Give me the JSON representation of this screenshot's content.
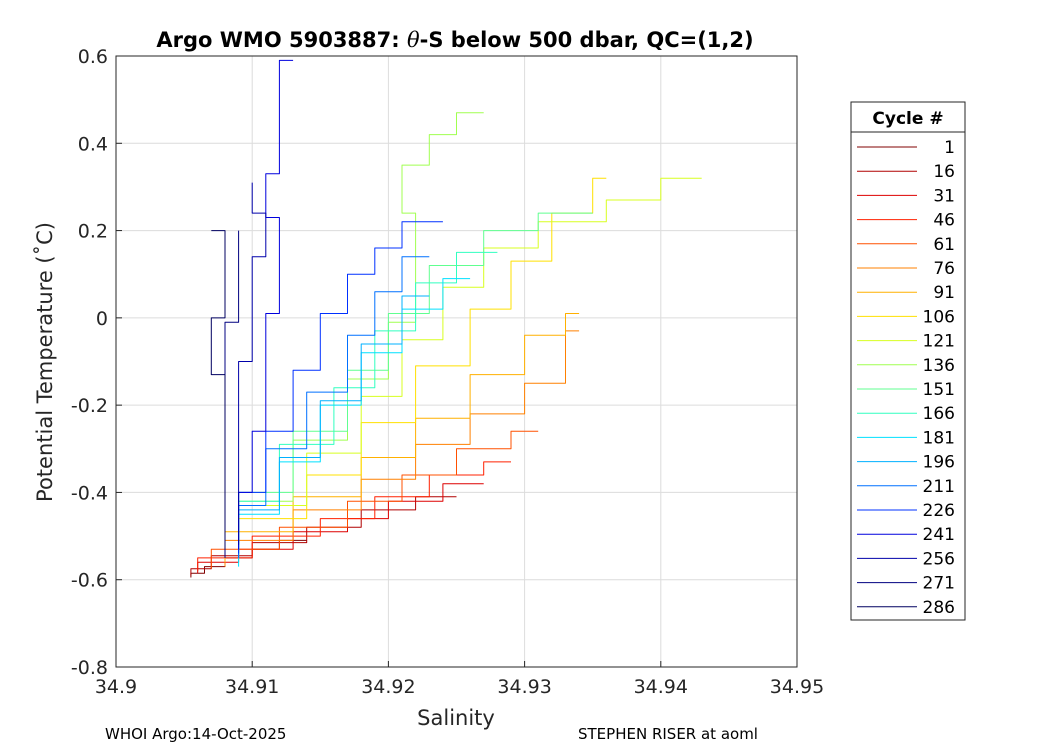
{
  "chart_data": {
    "type": "line",
    "title_parts": [
      "Argo WMO 5903887: ",
      "θ",
      "-S below 500 dbar,  QC=(1,2)"
    ],
    "xlabel": "Salinity",
    "ylabel": "Potential Temperature (˚C)",
    "xlim": [
      34.9,
      34.95
    ],
    "ylim": [
      -0.8,
      0.6
    ],
    "x_ticks": [
      34.9,
      34.91,
      34.92,
      34.93,
      34.94,
      34.95
    ],
    "x_tick_labels": [
      "34.9",
      "34.91",
      "34.92",
      "34.93",
      "34.94",
      "34.95"
    ],
    "y_ticks": [
      -0.8,
      -0.6,
      -0.4,
      -0.2,
      0,
      0.2,
      0.4,
      0.6
    ],
    "y_tick_labels": [
      "-0.8",
      "-0.6",
      "-0.4",
      "-0.2",
      "0",
      "0.2",
      "0.4",
      "0.6"
    ],
    "grid": true,
    "legend": {
      "title": "Cycle #",
      "placement": "right",
      "entries": [
        {
          "label": "1",
          "color": "#800000"
        },
        {
          "label": "16",
          "color": "#b00000"
        },
        {
          "label": "31",
          "color": "#dd0000"
        },
        {
          "label": "46",
          "color": "#ff2000"
        },
        {
          "label": "61",
          "color": "#ff5000"
        },
        {
          "label": "76",
          "color": "#ff8000"
        },
        {
          "label": "91",
          "color": "#ffb000"
        },
        {
          "label": "106",
          "color": "#ffe000"
        },
        {
          "label": "121",
          "color": "#d8ff20"
        },
        {
          "label": "136",
          "color": "#a0ff50"
        },
        {
          "label": "151",
          "color": "#60ff90"
        },
        {
          "label": "166",
          "color": "#30ffc0"
        },
        {
          "label": "181",
          "color": "#00e0ff"
        },
        {
          "label": "196",
          "color": "#00b0ff"
        },
        {
          "label": "211",
          "color": "#0070ff"
        },
        {
          "label": "226",
          "color": "#0030ff"
        },
        {
          "label": "241",
          "color": "#0000dd"
        },
        {
          "label": "256",
          "color": "#0000aa"
        },
        {
          "label": "271",
          "color": "#000080"
        },
        {
          "label": "286",
          "color": "#000060"
        }
      ]
    },
    "series": [
      {
        "label": "1",
        "color": "#800000",
        "points": [
          [
            34.9055,
            -0.595
          ],
          [
            34.9065,
            -0.585
          ],
          [
            34.908,
            -0.57
          ],
          [
            34.91,
            -0.55
          ],
          [
            34.912,
            -0.53
          ],
          [
            34.914,
            -0.51
          ]
        ]
      },
      {
        "label": "16",
        "color": "#b00000",
        "points": [
          [
            34.9055,
            -0.59
          ],
          [
            34.907,
            -0.575
          ],
          [
            34.91,
            -0.545
          ],
          [
            34.914,
            -0.515
          ],
          [
            34.918,
            -0.48
          ],
          [
            34.922,
            -0.44
          ],
          [
            34.925,
            -0.41
          ]
        ]
      },
      {
        "label": "31",
        "color": "#dd0000",
        "points": [
          [
            34.906,
            -0.585
          ],
          [
            34.909,
            -0.56
          ],
          [
            34.913,
            -0.53
          ],
          [
            34.917,
            -0.49
          ],
          [
            34.92,
            -0.46
          ],
          [
            34.924,
            -0.42
          ],
          [
            34.927,
            -0.38
          ]
        ]
      },
      {
        "label": "46",
        "color": "#ff2000",
        "points": [
          [
            34.906,
            -0.58
          ],
          [
            34.91,
            -0.55
          ],
          [
            34.915,
            -0.5
          ],
          [
            34.919,
            -0.46
          ],
          [
            34.923,
            -0.41
          ],
          [
            34.927,
            -0.36
          ],
          [
            34.929,
            -0.33
          ]
        ]
      },
      {
        "label": "61",
        "color": "#ff5000",
        "points": [
          [
            34.907,
            -0.575
          ],
          [
            34.912,
            -0.53
          ],
          [
            34.917,
            -0.48
          ],
          [
            34.921,
            -0.42
          ],
          [
            34.925,
            -0.36
          ],
          [
            34.929,
            -0.3
          ],
          [
            34.931,
            -0.26
          ]
        ]
      },
      {
        "label": "76",
        "color": "#ff8000",
        "points": [
          [
            34.908,
            -0.57
          ],
          [
            34.913,
            -0.51
          ],
          [
            34.918,
            -0.44
          ],
          [
            34.922,
            -0.37
          ],
          [
            34.926,
            -0.29
          ],
          [
            34.93,
            -0.22
          ],
          [
            34.933,
            -0.15
          ],
          [
            34.934,
            -0.03
          ]
        ]
      },
      {
        "label": "91",
        "color": "#ffb000",
        "points": [
          [
            34.908,
            -0.56
          ],
          [
            34.913,
            -0.49
          ],
          [
            34.918,
            -0.41
          ],
          [
            34.922,
            -0.32
          ],
          [
            34.926,
            -0.23
          ],
          [
            34.93,
            -0.13
          ],
          [
            34.933,
            -0.04
          ],
          [
            34.934,
            0.01
          ]
        ]
      },
      {
        "label": "106",
        "color": "#ffe000",
        "points": [
          [
            34.909,
            -0.55
          ],
          [
            34.914,
            -0.46
          ],
          [
            34.918,
            -0.36
          ],
          [
            34.922,
            -0.24
          ],
          [
            34.926,
            -0.11
          ],
          [
            34.929,
            0.02
          ],
          [
            34.932,
            0.13
          ],
          [
            34.935,
            0.24
          ],
          [
            34.936,
            0.32
          ]
        ]
      },
      {
        "label": "121",
        "color": "#d8ff20",
        "points": [
          [
            34.909,
            -0.54
          ],
          [
            34.914,
            -0.43
          ],
          [
            34.918,
            -0.31
          ],
          [
            34.921,
            -0.18
          ],
          [
            34.924,
            -0.05
          ],
          [
            34.927,
            0.07
          ],
          [
            34.931,
            0.16
          ],
          [
            34.936,
            0.22
          ],
          [
            34.94,
            0.27
          ],
          [
            34.943,
            0.32
          ]
        ]
      },
      {
        "label": "136",
        "color": "#a0ff50",
        "points": [
          [
            34.909,
            -0.53
          ],
          [
            34.913,
            -0.42
          ],
          [
            34.917,
            -0.28
          ],
          [
            34.92,
            -0.14
          ],
          [
            34.922,
            -0.01
          ],
          [
            34.922,
            0.12
          ],
          [
            34.921,
            0.24
          ],
          [
            34.923,
            0.35
          ],
          [
            34.925,
            0.42
          ],
          [
            34.927,
            0.47
          ]
        ]
      },
      {
        "label": "151",
        "color": "#60ff90",
        "points": [
          [
            34.909,
            -0.52
          ],
          [
            34.913,
            -0.4
          ],
          [
            34.917,
            -0.26
          ],
          [
            34.92,
            -0.12
          ],
          [
            34.923,
            0.01
          ],
          [
            34.927,
            0.12
          ],
          [
            34.931,
            0.2
          ],
          [
            34.935,
            0.24
          ]
        ]
      },
      {
        "label": "166",
        "color": "#30ffc0",
        "points": [
          [
            34.909,
            -0.53
          ],
          [
            34.912,
            -0.42
          ],
          [
            34.916,
            -0.29
          ],
          [
            34.919,
            -0.16
          ],
          [
            34.922,
            -0.03
          ],
          [
            34.925,
            0.08
          ],
          [
            34.928,
            0.15
          ]
        ]
      },
      {
        "label": "181",
        "color": "#00e0ff",
        "points": [
          [
            34.909,
            -0.57
          ],
          [
            34.912,
            -0.45
          ],
          [
            34.915,
            -0.33
          ],
          [
            34.918,
            -0.2
          ],
          [
            34.921,
            -0.08
          ],
          [
            34.924,
            0.02
          ],
          [
            34.926,
            0.09
          ]
        ]
      },
      {
        "label": "196",
        "color": "#00b0ff",
        "points": [
          [
            34.909,
            -0.55
          ],
          [
            34.912,
            -0.44
          ],
          [
            34.915,
            -0.32
          ],
          [
            34.918,
            -0.19
          ],
          [
            34.921,
            -0.06
          ],
          [
            34.923,
            0.05
          ]
        ]
      },
      {
        "label": "211",
        "color": "#0070ff",
        "points": [
          [
            34.909,
            -0.55
          ],
          [
            34.911,
            -0.43
          ],
          [
            34.914,
            -0.3
          ],
          [
            34.917,
            -0.17
          ],
          [
            34.919,
            -0.04
          ],
          [
            34.921,
            0.06
          ],
          [
            34.923,
            0.14
          ]
        ]
      },
      {
        "label": "226",
        "color": "#0030ff",
        "points": [
          [
            34.909,
            -0.54
          ],
          [
            34.911,
            -0.4
          ],
          [
            34.913,
            -0.26
          ],
          [
            34.915,
            -0.12
          ],
          [
            34.917,
            0.01
          ],
          [
            34.919,
            0.1
          ],
          [
            34.921,
            0.16
          ],
          [
            34.924,
            0.22
          ]
        ]
      },
      {
        "label": "241",
        "color": "#0000dd",
        "points": [
          [
            34.909,
            -0.53
          ],
          [
            34.91,
            -0.4
          ],
          [
            34.911,
            -0.26
          ],
          [
            34.911,
            -0.12
          ],
          [
            34.912,
            0.01
          ],
          [
            34.912,
            0.12
          ],
          [
            34.911,
            0.23
          ],
          [
            34.912,
            0.33
          ],
          [
            34.912,
            0.45
          ],
          [
            34.913,
            0.59
          ]
        ]
      },
      {
        "label": "256",
        "color": "#0000aa",
        "points": [
          [
            34.909,
            -0.52
          ],
          [
            34.909,
            -0.38
          ],
          [
            34.909,
            -0.24
          ],
          [
            34.91,
            -0.1
          ],
          [
            34.91,
            0.03
          ],
          [
            34.911,
            0.14
          ],
          [
            34.91,
            0.24
          ],
          [
            34.91,
            0.31
          ]
        ]
      },
      {
        "label": "271",
        "color": "#000080",
        "points": [
          [
            34.908,
            -0.55
          ],
          [
            34.908,
            -0.42
          ],
          [
            34.908,
            -0.28
          ],
          [
            34.908,
            -0.14
          ],
          [
            34.909,
            -0.01
          ],
          [
            34.909,
            0.1
          ],
          [
            34.909,
            0.2
          ]
        ]
      },
      {
        "label": "286",
        "color": "#000060",
        "points": [
          [
            34.908,
            -0.53
          ],
          [
            34.908,
            -0.4
          ],
          [
            34.908,
            -0.27
          ],
          [
            34.907,
            -0.13
          ],
          [
            34.908,
            0.0
          ],
          [
            34.908,
            0.12
          ],
          [
            34.907,
            0.2
          ]
        ]
      }
    ]
  },
  "footer": {
    "left": "WHOI Argo:14-Oct-2025",
    "right": "STEPHEN RISER at aoml"
  }
}
